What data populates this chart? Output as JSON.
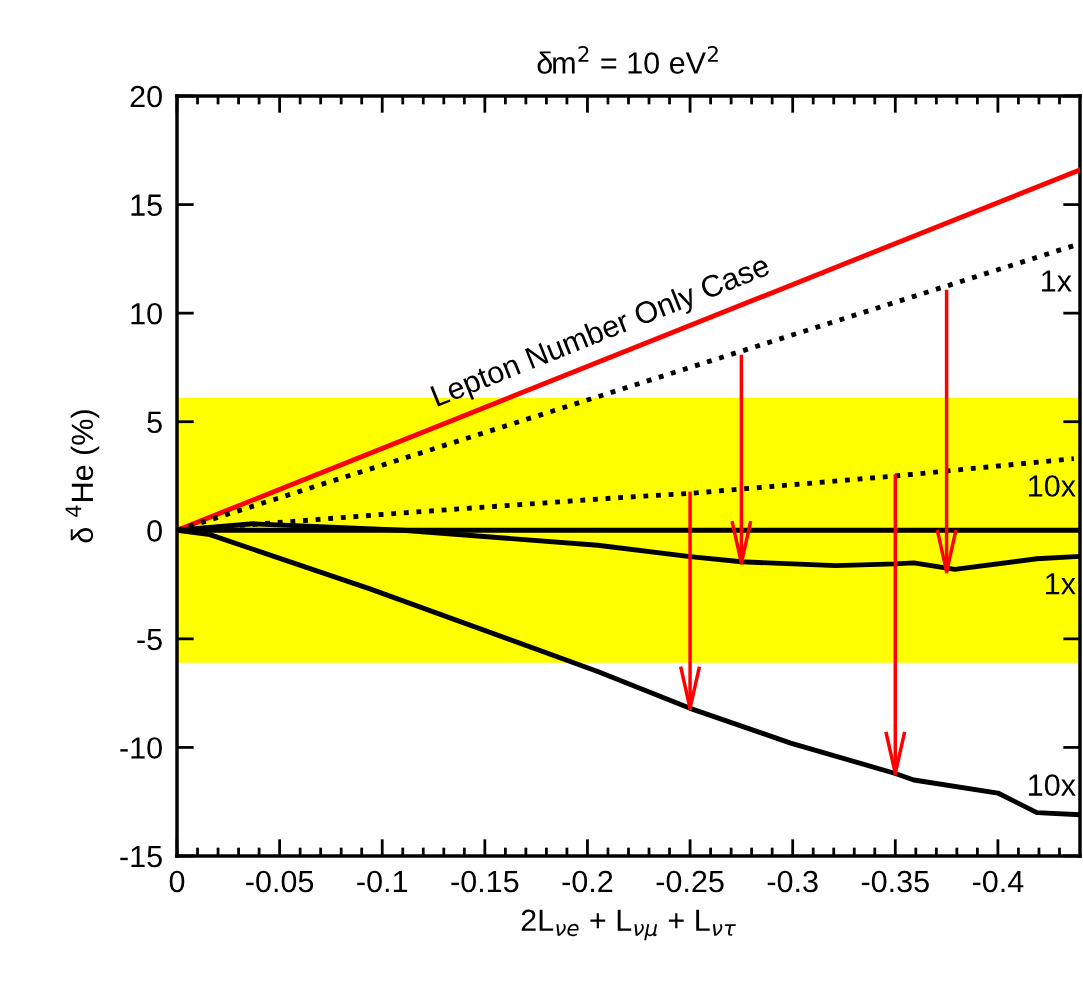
{
  "chart_data": {
    "type": "line",
    "title": "δm$^{2}$ = 10 eV$^{2}$",
    "xlabel": "2L$_{νe}$ + L$_{νμ}$ + L$_{ντ}$",
    "ylabel": "δ $^{4}$He (%)",
    "xlim": [
      0,
      -0.44
    ],
    "ylim": [
      -15,
      20
    ],
    "xticks": [
      0,
      {
        "value": -0.01,
        "label": null
      },
      {
        "value": -0.02,
        "label": null
      },
      {
        "value": -0.03,
        "label": null
      },
      {
        "value": -0.04,
        "label": null
      },
      -0.05,
      {
        "value": -0.06,
        "label": null
      },
      {
        "value": -0.07,
        "label": null
      },
      {
        "value": -0.08,
        "label": null
      },
      {
        "value": -0.09,
        "label": null
      },
      -0.1,
      {
        "value": -0.11,
        "label": null
      },
      {
        "value": -0.12,
        "label": null
      },
      {
        "value": -0.13,
        "label": null
      },
      {
        "value": -0.14,
        "label": null
      },
      -0.15,
      {
        "value": -0.16,
        "label": null
      },
      {
        "value": -0.17,
        "label": null
      },
      {
        "value": -0.18,
        "label": null
      },
      {
        "value": -0.19,
        "label": null
      },
      -0.2,
      {
        "value": -0.21,
        "label": null
      },
      {
        "value": -0.22,
        "label": null
      },
      {
        "value": -0.23,
        "label": null
      },
      {
        "value": -0.24,
        "label": null
      },
      -0.25,
      {
        "value": -0.26,
        "label": null
      },
      {
        "value": -0.27,
        "label": null
      },
      {
        "value": -0.28,
        "label": null
      },
      {
        "value": -0.29,
        "label": null
      },
      -0.3,
      {
        "value": -0.31,
        "label": null
      },
      {
        "value": -0.32,
        "label": null
      },
      {
        "value": -0.33,
        "label": null
      },
      {
        "value": -0.34,
        "label": null
      },
      -0.35,
      {
        "value": -0.36,
        "label": null
      },
      {
        "value": -0.37,
        "label": null
      },
      {
        "value": -0.38,
        "label": null
      },
      {
        "value": -0.39,
        "label": null
      },
      -0.4,
      {
        "value": -0.41,
        "label": null
      },
      {
        "value": -0.42,
        "label": null
      },
      {
        "value": -0.43,
        "label": null
      }
    ],
    "yticks": [
      -15,
      -10,
      -5,
      0,
      5,
      10,
      15,
      20
    ],
    "bands": [
      {
        "axis": "y",
        "from": -6.1,
        "to": 6.1,
        "color": "#ffff00"
      }
    ],
    "ref_lines": [
      {
        "axis": "y",
        "value": 0,
        "color": "#000000",
        "line_style": "solid"
      }
    ],
    "series": [
      {
        "color": "#ff0000",
        "line_style": "solid",
        "x": [
          0,
          -0.44
        ],
        "values": [
          0,
          16.6
        ]
      },
      {
        "color": "#000000",
        "line_style": "dotted",
        "x": [
          0,
          -0.44
        ],
        "values": [
          0,
          13.2
        ]
      },
      {
        "color": "#000000",
        "line_style": "dotted",
        "x": [
          0,
          -0.11,
          -0.215,
          -0.25,
          -0.35,
          -0.437
        ],
        "values": [
          0,
          0.8,
          1.5,
          1.7,
          2.5,
          3.3
        ]
      },
      {
        "color": "#000000",
        "line_style": "solid",
        "x": [
          0,
          -0.037,
          -0.11,
          -0.205,
          -0.25,
          -0.275,
          -0.321,
          -0.35,
          -0.359,
          -0.379,
          -0.419,
          -0.44
        ],
        "values": [
          0,
          0.3,
          0,
          -0.69,
          -1.21,
          -1.45,
          -1.63,
          -1.55,
          -1.5,
          -1.8,
          -1.31,
          -1.2
        ]
      },
      {
        "color": "#000000",
        "line_style": "solid",
        "x": [
          0,
          -0.016,
          -0.094,
          -0.205,
          -0.25,
          -0.299,
          -0.35,
          -0.359,
          -0.4,
          -0.419,
          -0.44
        ],
        "values": [
          0,
          -0.2,
          -2.7,
          -6.5,
          -8.2,
          -9.8,
          -11.2,
          -11.5,
          -12.1,
          -13.0,
          -13.1
        ]
      },
      {
        "color": "#ff0000",
        "line_style": "solid",
        "x": [
          -0.275,
          -0.275
        ],
        "values": [
          8.0,
          -1.5
        ]
      },
      {
        "color": "#ff0000",
        "line_style": "solid",
        "x": [
          -0.375,
          -0.375
        ],
        "values": [
          11.0,
          -1.9
        ]
      },
      {
        "color": "#ff0000",
        "line_style": "solid",
        "x": [
          -0.25,
          -0.25
        ],
        "values": [
          1.7,
          -8.2
        ]
      },
      {
        "color": "#ff0000",
        "line_style": "solid",
        "x": [
          -0.35,
          -0.35
        ],
        "values": [
          2.5,
          -11.2
        ]
      }
    ],
    "annotations": [
      "Lepton Number Only Case",
      "1x",
      "10x",
      "1x",
      "10x"
    ]
  }
}
